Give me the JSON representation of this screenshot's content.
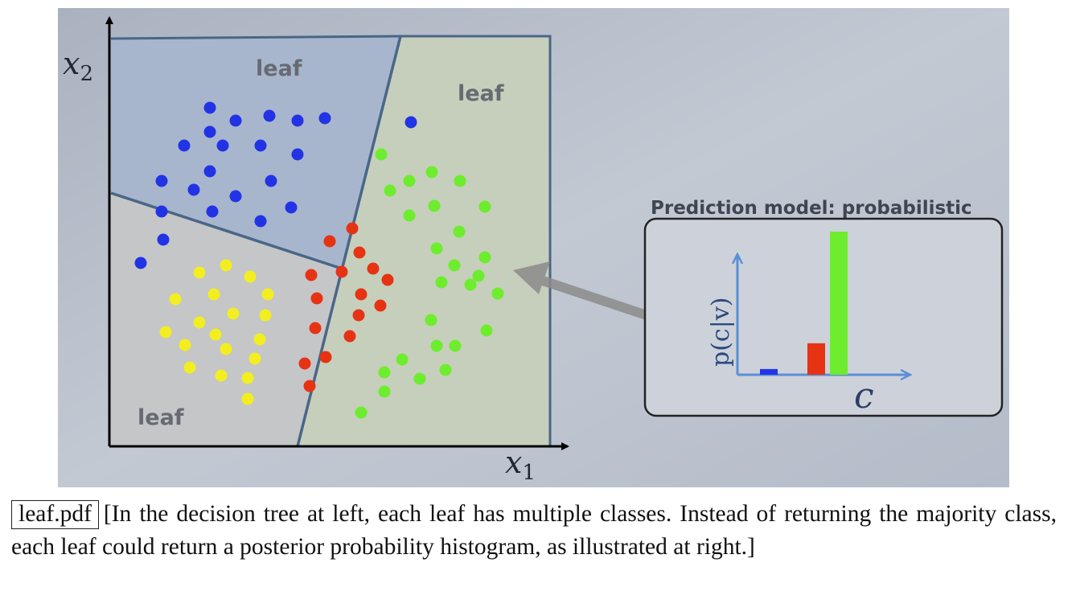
{
  "figure": {
    "region_labels": {
      "top_left": "leaf",
      "top_right": "leaf",
      "bottom_left": "leaf"
    },
    "axes": {
      "x_label": "x",
      "x_sub": "1",
      "y_label": "x",
      "y_sub": "2"
    },
    "class_colors": {
      "blue": "#2233e6",
      "red": "#e63314",
      "yellow": "#f2ee1f",
      "green": "#6ded2e"
    },
    "prediction_panel": {
      "title": "Prediction model: probabilistic",
      "y_label": "p(c|v)",
      "x_label": "c",
      "bars": [
        {
          "class": "blue",
          "relative_height": 0.04
        },
        {
          "class": "red",
          "relative_height": 0.22
        },
        {
          "class": "green",
          "relative_height": 1.0
        }
      ]
    }
  },
  "caption": {
    "file": "leaf.pdf",
    "text": "[In the decision tree at left, each leaf has multiple classes.  Instead of returning the majority class, each leaf could return a posterior probability histogram, as illustrated at right.]"
  }
}
